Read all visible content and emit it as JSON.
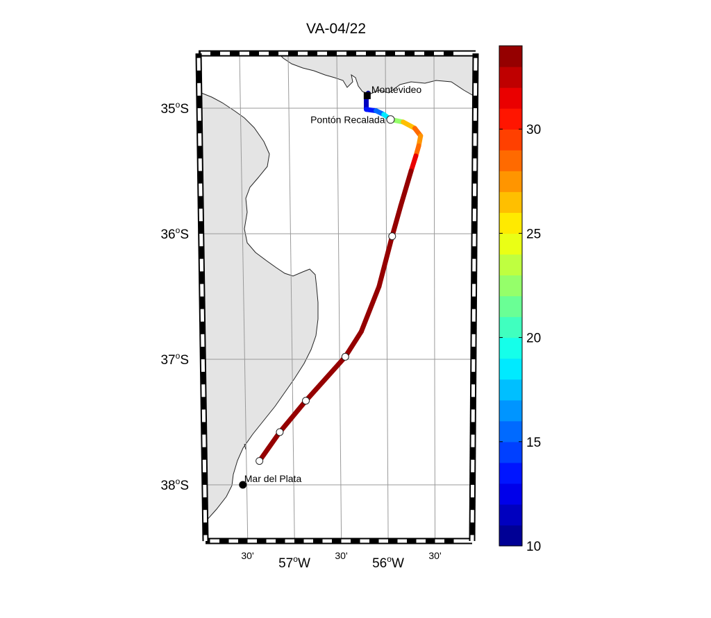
{
  "title": "VA-04/22",
  "map": {
    "lat_labels": [
      {
        "deg": "35",
        "hemi": "S",
        "lat": -35.0
      },
      {
        "deg": "36",
        "hemi": "S",
        "lat": -36.0
      },
      {
        "deg": "37",
        "hemi": "S",
        "lat": -37.0
      },
      {
        "deg": "38",
        "hemi": "S",
        "lat": -38.0
      }
    ],
    "lon_labels": [
      {
        "text": "30'",
        "lon": -57.5,
        "kind": "minor"
      },
      {
        "deg": "57",
        "hemi": "W",
        "lon": -57.0,
        "kind": "major"
      },
      {
        "text": "30'",
        "lon": -56.5,
        "kind": "minor"
      },
      {
        "deg": "56",
        "hemi": "W",
        "lon": -56.0,
        "kind": "major"
      },
      {
        "text": "30'",
        "lon": -55.5,
        "kind": "minor"
      }
    ],
    "places": [
      {
        "name": "Montevideo",
        "lon": -56.19,
        "lat": -34.9,
        "marker": "square"
      },
      {
        "name": "Pontón Recalada",
        "lon": -55.95,
        "lat": -35.09,
        "marker": "circle-open"
      },
      {
        "name": "Mar del Plata",
        "lon": -57.54,
        "lat": -38.0,
        "marker": "circle-filled"
      }
    ],
    "stations": [
      {
        "lon": -55.94,
        "lat": -36.02
      },
      {
        "lon": -56.44,
        "lat": -36.98
      },
      {
        "lon": -56.86,
        "lat": -37.33
      },
      {
        "lon": -57.14,
        "lat": -37.58
      },
      {
        "lon": -57.36,
        "lat": -37.81
      }
    ],
    "track": [
      {
        "lon": -56.18,
        "lat": -34.88,
        "v": 10
      },
      {
        "lon": -56.2,
        "lat": -34.93,
        "v": 11
      },
      {
        "lon": -56.2,
        "lat": -35.01,
        "v": 12
      },
      {
        "lon": -56.1,
        "lat": -35.02,
        "v": 14
      },
      {
        "lon": -56.02,
        "lat": -35.05,
        "v": 16
      },
      {
        "lon": -55.95,
        "lat": -35.09,
        "v": 20
      },
      {
        "lon": -55.82,
        "lat": -35.11,
        "v": 25
      },
      {
        "lon": -55.7,
        "lat": -35.16,
        "v": 27
      },
      {
        "lon": -55.64,
        "lat": -35.22,
        "v": 29
      },
      {
        "lon": -55.66,
        "lat": -35.3,
        "v": 26
      },
      {
        "lon": -55.69,
        "lat": -35.38,
        "v": 30
      },
      {
        "lon": -55.74,
        "lat": -35.5,
        "v": 33
      },
      {
        "lon": -55.85,
        "lat": -35.78,
        "v": 34
      },
      {
        "lon": -55.94,
        "lat": -36.02,
        "v": 34
      },
      {
        "lon": -56.08,
        "lat": -36.42,
        "v": 34
      },
      {
        "lon": -56.27,
        "lat": -36.78,
        "v": 34
      },
      {
        "lon": -56.44,
        "lat": -36.98,
        "v": 34
      },
      {
        "lon": -56.86,
        "lat": -37.33,
        "v": 34
      },
      {
        "lon": -57.14,
        "lat": -37.58,
        "v": 34
      },
      {
        "lon": -57.36,
        "lat": -37.81,
        "v": 34
      }
    ]
  },
  "colorbar": {
    "min": 10,
    "max": 34,
    "ticks": [
      {
        "label": "10",
        "value": 10
      },
      {
        "label": "15",
        "value": 15
      },
      {
        "label": "20",
        "value": 20
      },
      {
        "label": "25",
        "value": 25
      },
      {
        "label": "30",
        "value": 30
      }
    ],
    "colormap": "jet",
    "levels": 24
  },
  "colors": {
    "land": "#e4e4e4",
    "coastline": "#222222",
    "grid": "#9a9a9a",
    "frame": "#000000"
  }
}
